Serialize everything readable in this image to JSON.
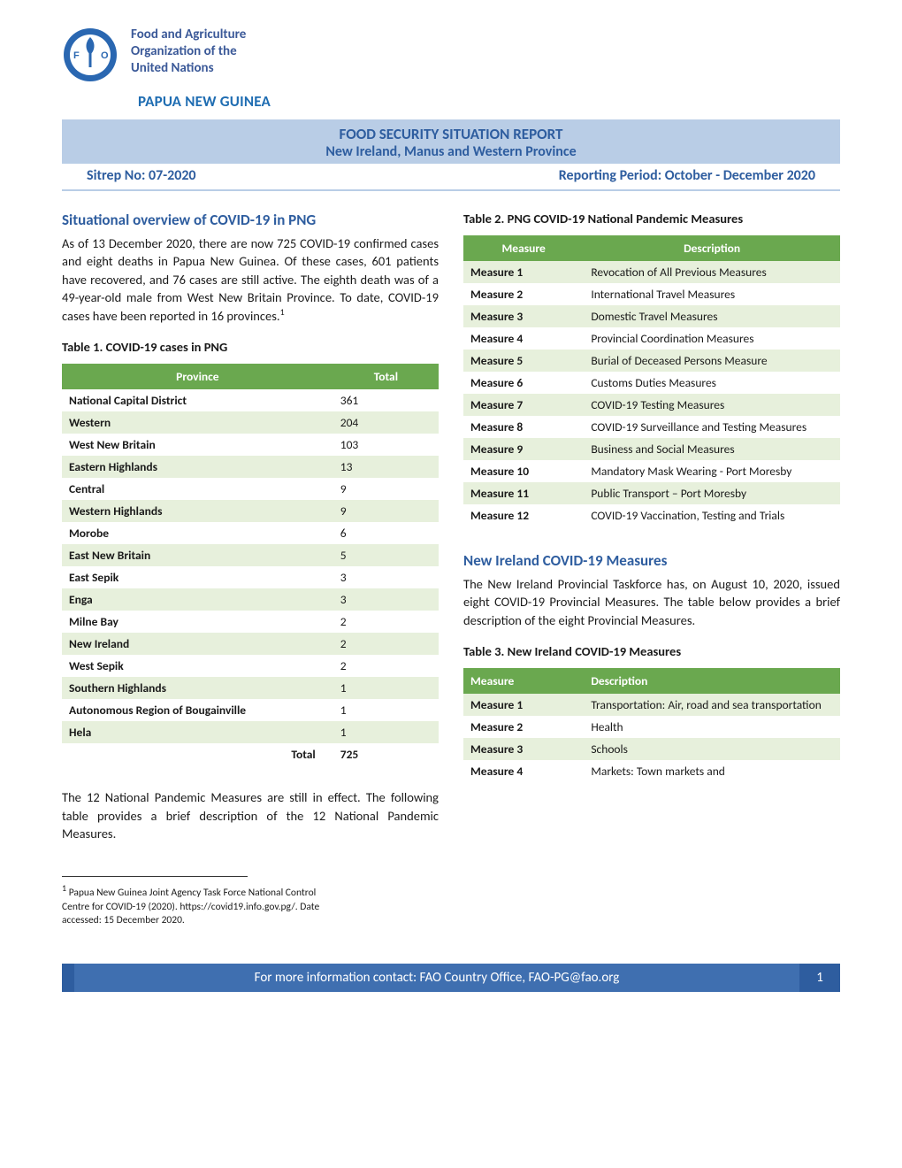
{
  "header": {
    "org_line1": "Food and Agriculture",
    "org_line2": "Organization of the",
    "org_line3": "United Nations",
    "country": "PAPUA NEW GUINEA",
    "logo_color_outer": "#2a67b1",
    "logo_color_inner": "#ffffff"
  },
  "title": {
    "line1": "FOOD SECURITY SITUATION REPORT",
    "line2": "New Ireland, Manus and Western Province",
    "sitrep": "Sitrep No: 07-2020",
    "period": "Reporting Period: October - December 2020",
    "bg_color": "#b9cde6",
    "text_color": "#2e5d9f"
  },
  "section1": {
    "heading": "Situational overview of COVID-19 in PNG",
    "paragraph": "As of 13 December 2020, there are now 725 COVID-19 confirmed cases and eight deaths in Papua New Guinea. Of these cases, 601 patients have recovered, and 76 cases are still active. The eighth death was of a 49-year-old male from West New Britain Province. To date, COVID-19 cases have been reported in 16 provinces.",
    "footref": "1"
  },
  "table1": {
    "caption": "Table 1. COVID-19 cases in PNG",
    "columns": [
      "Province",
      "Total"
    ],
    "rows": [
      [
        "National Capital District",
        "361"
      ],
      [
        "Western",
        "204"
      ],
      [
        "West New Britain",
        "103"
      ],
      [
        "Eastern Highlands",
        "13"
      ],
      [
        "Central",
        "9"
      ],
      [
        "Western Highlands",
        "9"
      ],
      [
        "Morobe",
        "6"
      ],
      [
        "East New Britain",
        "5"
      ],
      [
        "East Sepik",
        "3"
      ],
      [
        "Enga",
        "3"
      ],
      [
        "Milne Bay",
        "2"
      ],
      [
        "New Ireland",
        "2"
      ],
      [
        "West Sepik",
        "2"
      ],
      [
        "Southern Highlands",
        "1"
      ],
      [
        "Autonomous Region of Bougainville",
        "1"
      ],
      [
        "Hela",
        "1"
      ]
    ],
    "total_label": "Total",
    "total_value": "725",
    "header_bg": "#6aa84f",
    "row_alt_bg": "#e7f0dc"
  },
  "mid_paragraph": "The 12 National Pandemic Measures are still in effect. The following table provides a brief description of the 12 National Pandemic Measures.",
  "table2": {
    "caption": "Table 2. PNG COVID-19 National Pandemic Measures",
    "columns": [
      "Measure",
      "Description"
    ],
    "rows": [
      [
        "Measure 1",
        "Revocation of All Previous Measures"
      ],
      [
        "Measure 2",
        "International Travel Measures"
      ],
      [
        "Measure 3",
        "Domestic Travel Measures"
      ],
      [
        "Measure 4",
        "Provincial Coordination Measures"
      ],
      [
        "Measure 5",
        "Burial of Deceased Persons Measure"
      ],
      [
        "Measure 6",
        "Customs Duties Measures"
      ],
      [
        "Measure 7",
        "COVID-19 Testing Measures"
      ],
      [
        "Measure 8",
        "COVID-19 Surveillance and Testing Measures"
      ],
      [
        "Measure 9",
        "Business and Social Measures"
      ],
      [
        "Measure 10",
        "Mandatory Mask Wearing - Port Moresby"
      ],
      [
        "Measure 11",
        "Public Transport – Port Moresby"
      ],
      [
        "Measure 12",
        "COVID-19 Vaccination, Testing and Trials"
      ]
    ]
  },
  "section2": {
    "heading": "New Ireland COVID-19 Measures",
    "paragraph": "The New Ireland Provincial Taskforce has, on August 10, 2020, issued eight COVID-19 Provincial Measures. The table below provides a brief description of the eight Provincial Measures."
  },
  "table3": {
    "caption": "Table 3. New Ireland COVID-19 Measures",
    "columns": [
      "Measure",
      "Description"
    ],
    "rows": [
      [
        "Measure 1",
        "Transportation: Air, road and sea transportation"
      ],
      [
        "Measure 2",
        "Health"
      ],
      [
        "Measure 3",
        "Schools"
      ],
      [
        "Measure 4",
        "Markets: Town markets and"
      ]
    ]
  },
  "footnote": {
    "num": "1",
    "text": "Papua New Guinea Joint Agency Task Force National Control Centre for COVID-19 (2020). https://covid19.info.gov.pg/. Date accessed: 15 December 2020."
  },
  "footer": {
    "text": "For more information contact: FAO Country Office, FAO-PG@fao.org",
    "page": "1",
    "bg_main": "#3f6fb0",
    "bg_accent": "#2e5d9f"
  }
}
